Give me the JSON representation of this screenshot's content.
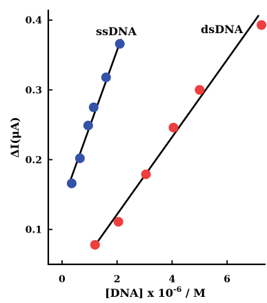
{
  "chart_data": {
    "type": "scatter",
    "title": "",
    "xlabel_main": "[DNA] x 10",
    "xlabel_exp": "-6",
    "xlabel_tail": " / M",
    "ylabel": "ΔI(μA)",
    "xlim": [
      -0.5,
      7.4
    ],
    "ylim": [
      0.05,
      0.415
    ],
    "xticks": [
      0,
      2,
      4,
      6
    ],
    "yticks": [
      0.1,
      0.2,
      0.3,
      0.4
    ],
    "xtick_labels": [
      "0",
      "2",
      "4",
      "6"
    ],
    "ytick_labels": [
      "0.1",
      "0.2",
      "0.3",
      "0.4"
    ],
    "grid": false,
    "series": [
      {
        "name": "ssDNA",
        "color": "#3352a8",
        "x": [
          0.35,
          0.65,
          0.95,
          1.15,
          1.6,
          2.1
        ],
        "y": [
          0.166,
          0.202,
          0.249,
          0.275,
          0.318,
          0.366
        ],
        "fit": {
          "x": [
            0.3,
            2.15
          ],
          "y": [
            0.17,
            0.373
          ]
        }
      },
      {
        "name": "dsDNA",
        "color": "#ee3e3e",
        "x": [
          1.2,
          2.05,
          3.05,
          4.05,
          5.0,
          7.25
        ],
        "y": [
          0.078,
          0.111,
          0.179,
          0.246,
          0.3,
          0.393
        ],
        "fit": {
          "x": [
            1.25,
            7.15
          ],
          "y": [
            0.08,
            0.407
          ]
        }
      }
    ]
  }
}
